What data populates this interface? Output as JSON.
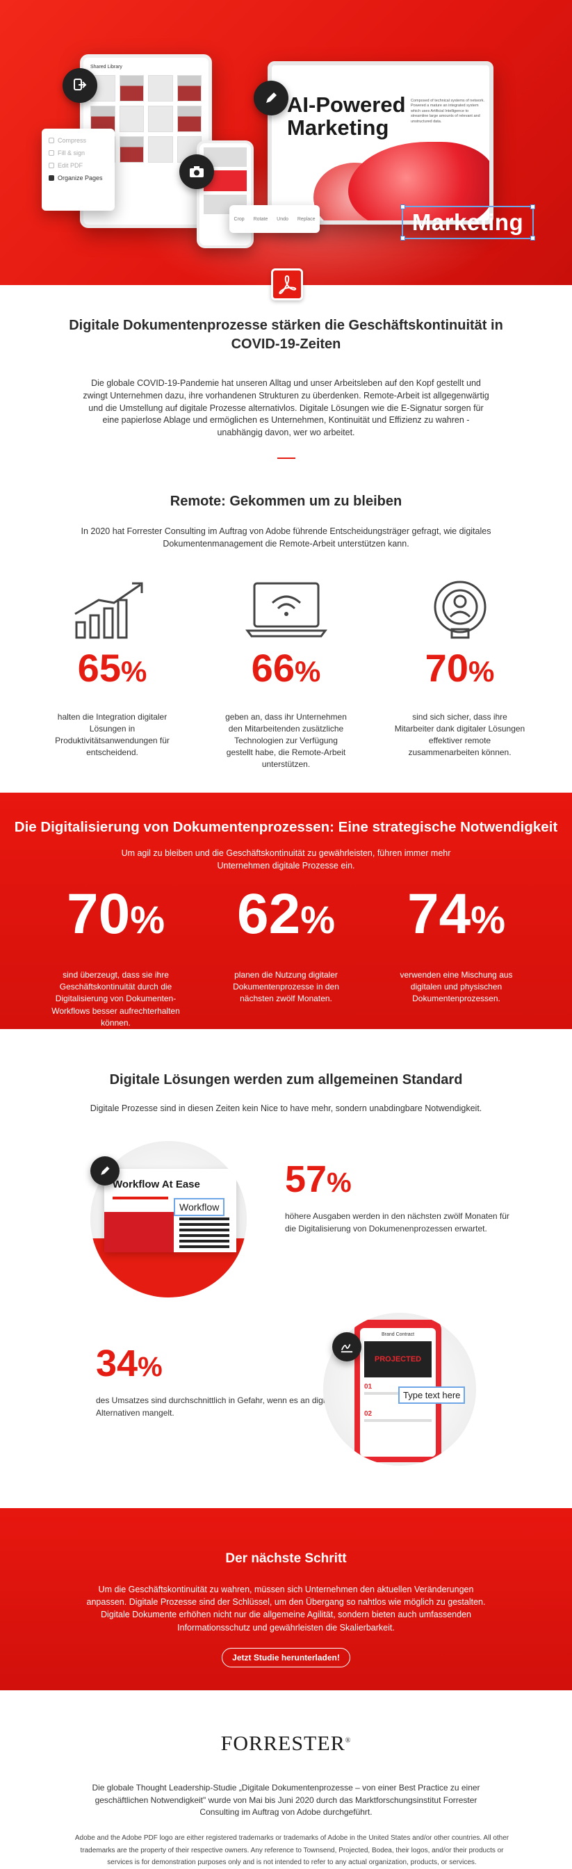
{
  "hero": {
    "tablet_heading": "Shared Library",
    "menu_items": [
      "Compress",
      "Fill & sign",
      "Edit PDF",
      "Organize Pages"
    ],
    "laptop_title_line1": "AI-Powered",
    "laptop_title_line2": "Marketing",
    "laptop_small_text": "Composed of technical systems of network. Powered a mature an integrated system which uses Artificial Intelligence to streamline large amounts of relevant and unstructured data.",
    "toolbar_items": [
      "Crop",
      "Rotate",
      "Undo",
      "Replace"
    ],
    "marketing_label": "Marketing",
    "colors": {
      "brand_red": "#e41c11",
      "selection_blue": "#6fa6e8"
    }
  },
  "intro": {
    "title": "Digitale Dokumentenprozesse stärken die Geschäftskontinuität in COVID-19-Zeiten",
    "body": "Die globale COVID-19-Pandemie hat unseren Alltag und unser Arbeitsleben auf den Kopf gestellt und zwingt Unternehmen dazu, ihre vorhandenen Strukturen zu überdenken. Remote-Arbeit ist allgegenwärtig und die Umstellung auf digitale Prozesse alternativlos. Digitale Lösungen wie die E-Signatur sorgen für eine papierlose Ablage und ermöglichen es Unternehmen, Kontinuität und Effizienz zu wahren - unabhängig davon, wer wo arbeitet."
  },
  "remote": {
    "title": "Remote: Gekommen um zu bleiben",
    "sub": "In 2020 hat Forrester Consulting im Auftrag von Adobe führende Entscheidungsträger gefragt, wie digitales Dokumentenmanagement die Remote-Arbeit unterstützen kann.",
    "stats": [
      {
        "value": "65",
        "unit": "%",
        "icon": "growth-chart-icon",
        "desc": "halten die Integration digitaler Lösungen in Produktivitätsanwendungen für entscheidend."
      },
      {
        "value": "66",
        "unit": "%",
        "icon": "laptop-wifi-icon",
        "desc": "geben an, dass ihr Unternehmen den Mitarbeitenden zusätzliche Technologien zur Verfügung gestellt habe, die Remote-Arbeit unterstützen."
      },
      {
        "value": "70",
        "unit": "%",
        "icon": "person-broadcast-icon",
        "desc": "sind sich sicher, dass ihre Mitarbeiter dank digitaler Lösungen effektiver remote zusammenarbeiten können."
      }
    ]
  },
  "strategic": {
    "title": "Die Digitalisierung von Dokumentenprozessen: Eine strategische Notwendigkeit",
    "sub": "Um agil zu bleiben und die Geschäftskontinuität zu gewährleisten, führen immer mehr Unternehmen digitale Prozesse ein.",
    "stats": [
      {
        "value": "70",
        "unit": "%",
        "desc": "sind überzeugt, dass sie ihre Geschäftskontinuität durch die Digitalisierung von Dokumenten-Workflows besser aufrechterhalten können."
      },
      {
        "value": "62",
        "unit": "%",
        "desc": "planen die Nutzung digitaler Dokumentenprozesse in den nächsten zwölf Monaten."
      },
      {
        "value": "74",
        "unit": "%",
        "desc": "verwenden eine Mischung aus digitalen und physischen Dokumentenprozessen."
      }
    ]
  },
  "standard": {
    "title": "Digitale Lösungen werden zum allgemeinen Standard",
    "sub": "Digitale Prozesse sind in diesen Zeiten kein Nice to have mehr, sondern unabdingbare Notwendigkeit.",
    "image1": {
      "title": "Workflow At Ease",
      "label": "Workflow"
    },
    "stat1": {
      "value": "57",
      "unit": "%",
      "desc": "höhere Ausgaben werden in den nächsten zwölf Monaten für die Digitalisierung von Dokumenenprozessen erwartet."
    },
    "stat2": {
      "value": "34",
      "unit": "%",
      "desc": "des Umsatzes sind durchschnittlich in Gefahr, wenn es an digitalen Alternativen mangelt."
    },
    "image2": {
      "header": "Brand Contract",
      "brand": "PROJECTED",
      "item1": "01",
      "item2": "02",
      "type_label": "Type text here"
    }
  },
  "next": {
    "title": "Der nächste Schritt",
    "body": "Um die Geschäftskontinuität zu wahren, müssen sich Unternehmen den aktuellen Veränderungen anpassen. Digitale Prozesse sind der Schlüssel, um den Übergang so nahtlos wie möglich zu gestalten. Digitale Dokumente erhöhen nicht nur die allgemeine Agilität, sondern bieten auch umfassenden Informationsschutz und gewährleisten die Skalierbarkeit.",
    "cta": "Jetzt Studie herunterladen!"
  },
  "footer": {
    "logo": "FORRESTER",
    "logo_mark": "®",
    "study": "Die globale Thought Leadership-Studie „Digitale Dokumentenprozesse – von einer Best Practice zu einer geschäftlichen Notwendigkeit\" wurde von Mai bis Juni 2020 durch das Marktforschungsinstitut Forrester Consulting im Auftrag von Adobe durchgeführt.",
    "legal": "Adobe and the Adobe PDF logo are either registered trademarks or trademarks of Adobe in the United States and/or other countries. All other trademarks are the property of their respective owners. Any reference to Townsend, Projected, Bodea, their logos, and/or their products or services is for demonstration purposes only and is not intended to refer to any actual organization, products, or services."
  }
}
